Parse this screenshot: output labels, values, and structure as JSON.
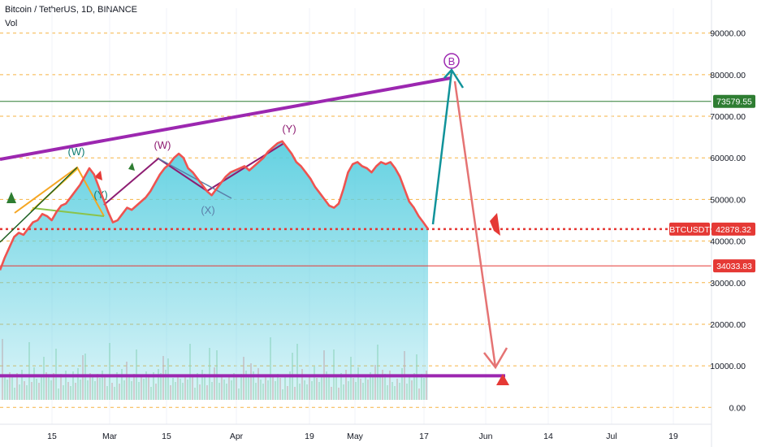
{
  "header": {
    "symbol_line": "Bitcoin / TetherUS, 1D, BINANCE",
    "indicator": "Vol"
  },
  "colors": {
    "price_line": "#ef5350",
    "area_fill": "#5ccfe0",
    "grid_dash": "#f5a623",
    "trend_purple": "#9c27b0",
    "green_line": "#2e7d32",
    "red_line": "#e53935",
    "teal_arrow": "#11939a",
    "salmon_arrow": "#e57373",
    "wave_purple": "#8e1d72",
    "wave_teal": "#0e7c72",
    "wave_blue": "#5b7ea8"
  },
  "chart_data": {
    "type": "line",
    "y_ticks": [
      "90000.00",
      "80000.00",
      "70000.00",
      "60000.00",
      "50000.00",
      "40000.00",
      "30000.00",
      "20000.00",
      "10000.00",
      "0.00"
    ],
    "ylim": [
      -6000,
      96000
    ],
    "x_ticks": [
      "15",
      "Mar",
      "15",
      "Apr",
      "19",
      "May",
      "17",
      "Jun",
      "14",
      "Jul",
      "19"
    ],
    "price_tags": [
      {
        "label": "73579.55",
        "value": 73579.55,
        "color": "#2e7d32"
      },
      {
        "label": "BTCUSDT",
        "value": 42878.32,
        "color": "#e53935"
      },
      {
        "label": "42878.32",
        "value": 42878.32,
        "color": "#e53935"
      },
      {
        "label": "34033.83",
        "value": 34033.83,
        "color": "#e53935"
      }
    ],
    "series": [
      {
        "values": [
          33000,
          36000,
          38500,
          41000,
          42000,
          41500,
          43000,
          44500,
          45000,
          46500,
          46000,
          45000,
          47000,
          48500,
          49000,
          50500,
          52000,
          53500,
          55500,
          57500,
          56000,
          53000,
          50000,
          47000,
          44500,
          45000,
          46500,
          48000,
          47500,
          48500,
          49500,
          50500,
          52000,
          54000,
          56000,
          57500,
          58500,
          60000,
          61000,
          60000,
          57500,
          56500,
          55000,
          53500,
          52000,
          51000,
          52500,
          54000,
          55500,
          56500,
          57000,
          57500,
          58000,
          57000,
          58000,
          59000,
          60000,
          61500,
          62500,
          63500,
          64000,
          62500,
          61000,
          59000,
          58000,
          56500,
          55000,
          53000,
          51500,
          50000,
          48500,
          48000,
          49000,
          52500,
          56500,
          58500,
          59000,
          58000,
          57500,
          56500,
          58000,
          59000,
          58500,
          59000,
          57500,
          55500,
          52500,
          49500,
          48000,
          46000,
          44500,
          42900
        ]
      }
    ],
    "waves": [
      "(W)",
      "(Y)",
      "(W)",
      "(X)",
      "(Y)",
      "B"
    ],
    "key_levels": [
      73579.55,
      42878.32,
      34033.83,
      7600
    ]
  }
}
